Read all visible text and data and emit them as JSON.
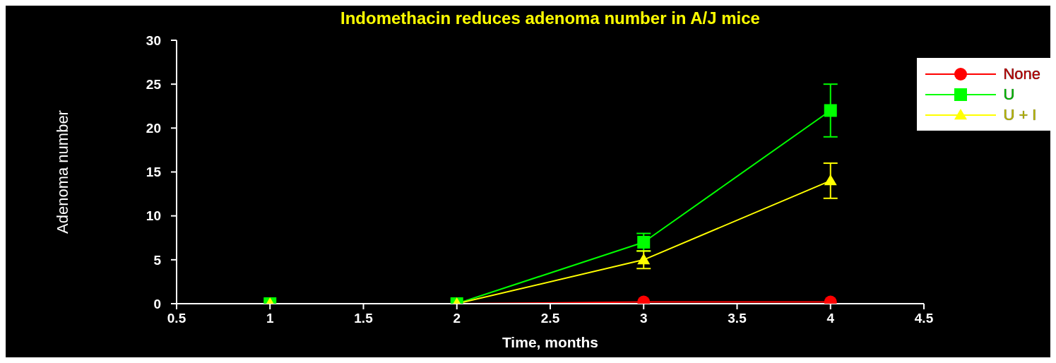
{
  "chart_data": {
    "type": "line",
    "title": "Indomethacin reduces adenoma number in A/J mice",
    "xlabel": "Time, months",
    "ylabel": "Adenoma number",
    "x": [
      1,
      2,
      3,
      4
    ],
    "series": [
      {
        "name": "None",
        "color": "#ff0000",
        "marker": "circle",
        "values": [
          0,
          0,
          0.2,
          0.2
        ]
      },
      {
        "name": "U",
        "color": "#00ff00",
        "marker": "square",
        "values": [
          0,
          0,
          7,
          22
        ],
        "errors": [
          null,
          null,
          [
            6,
            8
          ],
          [
            19,
            25
          ]
        ]
      },
      {
        "name": "U + I",
        "color": "#ffff00",
        "marker": "triangle",
        "values": [
          0,
          0,
          5,
          14
        ],
        "errors": [
          null,
          null,
          [
            4,
            6
          ],
          [
            12,
            16
          ]
        ]
      }
    ],
    "xlim": [
      0.5,
      4.5
    ],
    "xticks": [
      0.5,
      1,
      1.5,
      2,
      2.5,
      3,
      3.5,
      4,
      4.5
    ],
    "ylim": [
      0,
      30
    ],
    "yticks": [
      0,
      5,
      10,
      15,
      20,
      25,
      30
    ],
    "grid": false,
    "legend": "top right",
    "line_style": "solid"
  }
}
